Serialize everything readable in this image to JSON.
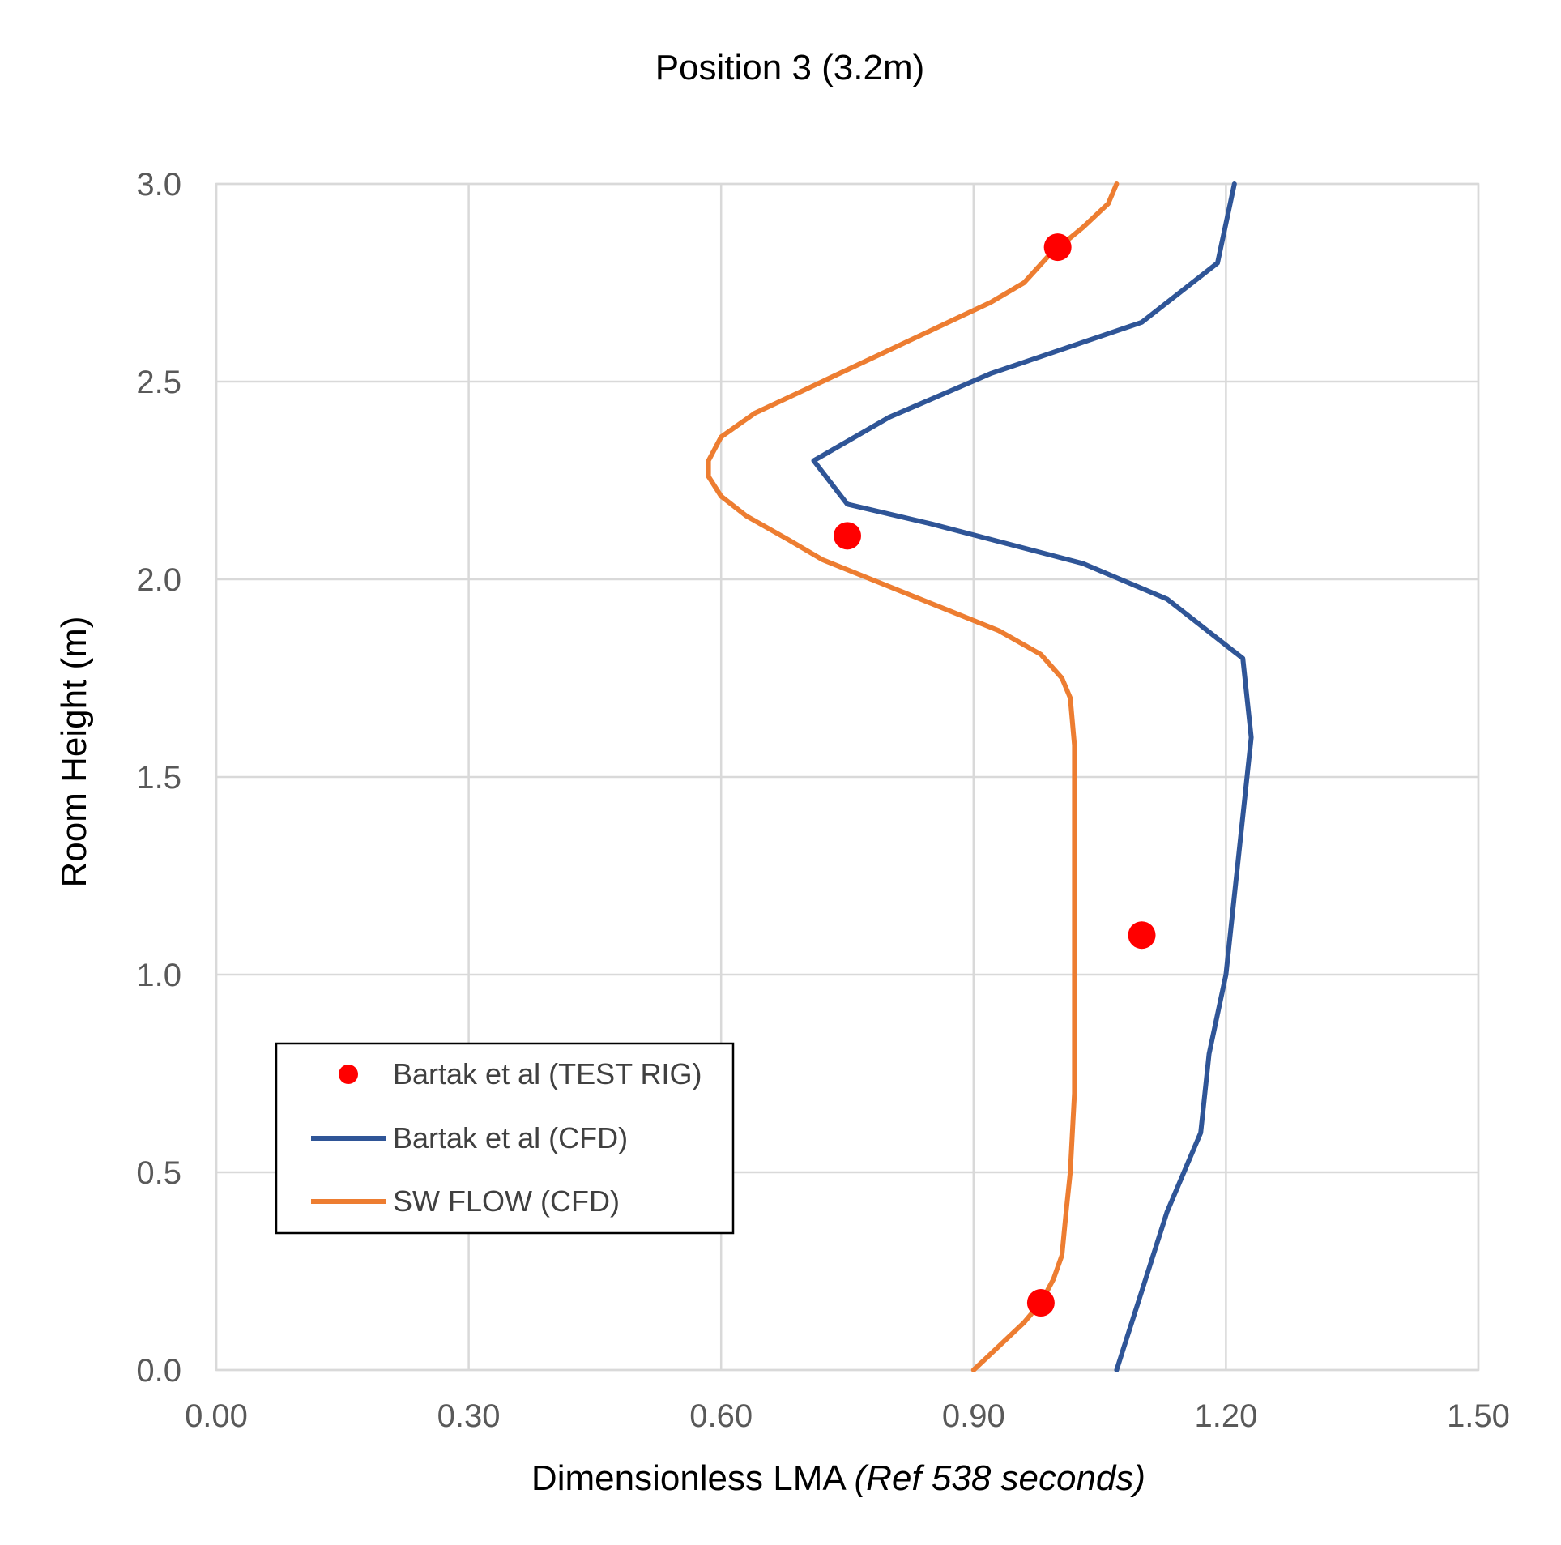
{
  "chart_data": {
    "type": "scatter+line",
    "title": "Position 3 (3.2m)",
    "xlabel": "Dimensionless LMA",
    "xlabel_unit": "(Ref 538 seconds)",
    "ylabel": "Room Height (m)",
    "xlim": [
      0,
      1.5
    ],
    "ylim": [
      0,
      3
    ],
    "x_ticks": [
      "0.00",
      "0.30",
      "0.60",
      "0.90",
      "1.20",
      "1.50"
    ],
    "y_ticks": [
      "0.0",
      "0.5",
      "1.0",
      "1.5",
      "2.0",
      "2.5",
      "3.0"
    ],
    "grid": true,
    "legend_position": "lower-left",
    "series": [
      {
        "name": "Bartak et al (TEST RIG)",
        "kind": "scatter",
        "color": "#ff0000",
        "points": [
          [
            0.98,
            0.17
          ],
          [
            1.1,
            1.1
          ],
          [
            0.75,
            2.11
          ],
          [
            1.0,
            2.84
          ]
        ]
      },
      {
        "name": "Bartak et al (CFD)",
        "kind": "line",
        "color": "#2f5597",
        "points": [
          [
            1.07,
            0.0
          ],
          [
            1.13,
            0.4
          ],
          [
            1.17,
            0.6
          ],
          [
            1.18,
            0.8
          ],
          [
            1.2,
            1.0
          ],
          [
            1.23,
            1.6
          ],
          [
            1.22,
            1.8
          ],
          [
            1.13,
            1.95
          ],
          [
            1.03,
            2.04
          ],
          [
            0.85,
            2.14
          ],
          [
            0.75,
            2.19
          ],
          [
            0.71,
            2.3
          ],
          [
            0.8,
            2.41
          ],
          [
            0.92,
            2.52
          ],
          [
            1.1,
            2.65
          ],
          [
            1.19,
            2.8
          ],
          [
            1.21,
            3.0
          ]
        ]
      },
      {
        "name": "SW FLOW (CFD)",
        "kind": "line",
        "color": "#ed7d31",
        "points": [
          [
            0.9,
            0.0
          ],
          [
            0.915,
            0.03
          ],
          [
            0.935,
            0.07
          ],
          [
            0.96,
            0.12
          ],
          [
            0.98,
            0.17
          ],
          [
            0.995,
            0.23
          ],
          [
            1.005,
            0.29
          ],
          [
            1.01,
            0.4
          ],
          [
            1.015,
            0.5
          ],
          [
            1.02,
            0.7
          ],
          [
            1.02,
            0.9
          ],
          [
            1.02,
            1.2
          ],
          [
            1.02,
            1.4
          ],
          [
            1.02,
            1.58
          ],
          [
            1.015,
            1.7
          ],
          [
            1.005,
            1.75
          ],
          [
            0.98,
            1.81
          ],
          [
            0.93,
            1.87
          ],
          [
            0.86,
            1.93
          ],
          [
            0.79,
            1.99
          ],
          [
            0.72,
            2.05
          ],
          [
            0.68,
            2.1
          ],
          [
            0.63,
            2.16
          ],
          [
            0.6,
            2.21
          ],
          [
            0.585,
            2.26
          ],
          [
            0.585,
            2.3
          ],
          [
            0.6,
            2.36
          ],
          [
            0.64,
            2.42
          ],
          [
            0.7,
            2.48
          ],
          [
            0.77,
            2.55
          ],
          [
            0.82,
            2.6
          ],
          [
            0.88,
            2.66
          ],
          [
            0.92,
            2.7
          ],
          [
            0.96,
            2.75
          ],
          [
            0.99,
            2.82
          ],
          [
            1.03,
            2.89
          ],
          [
            1.06,
            2.95
          ],
          [
            1.07,
            3.0
          ]
        ]
      }
    ]
  }
}
